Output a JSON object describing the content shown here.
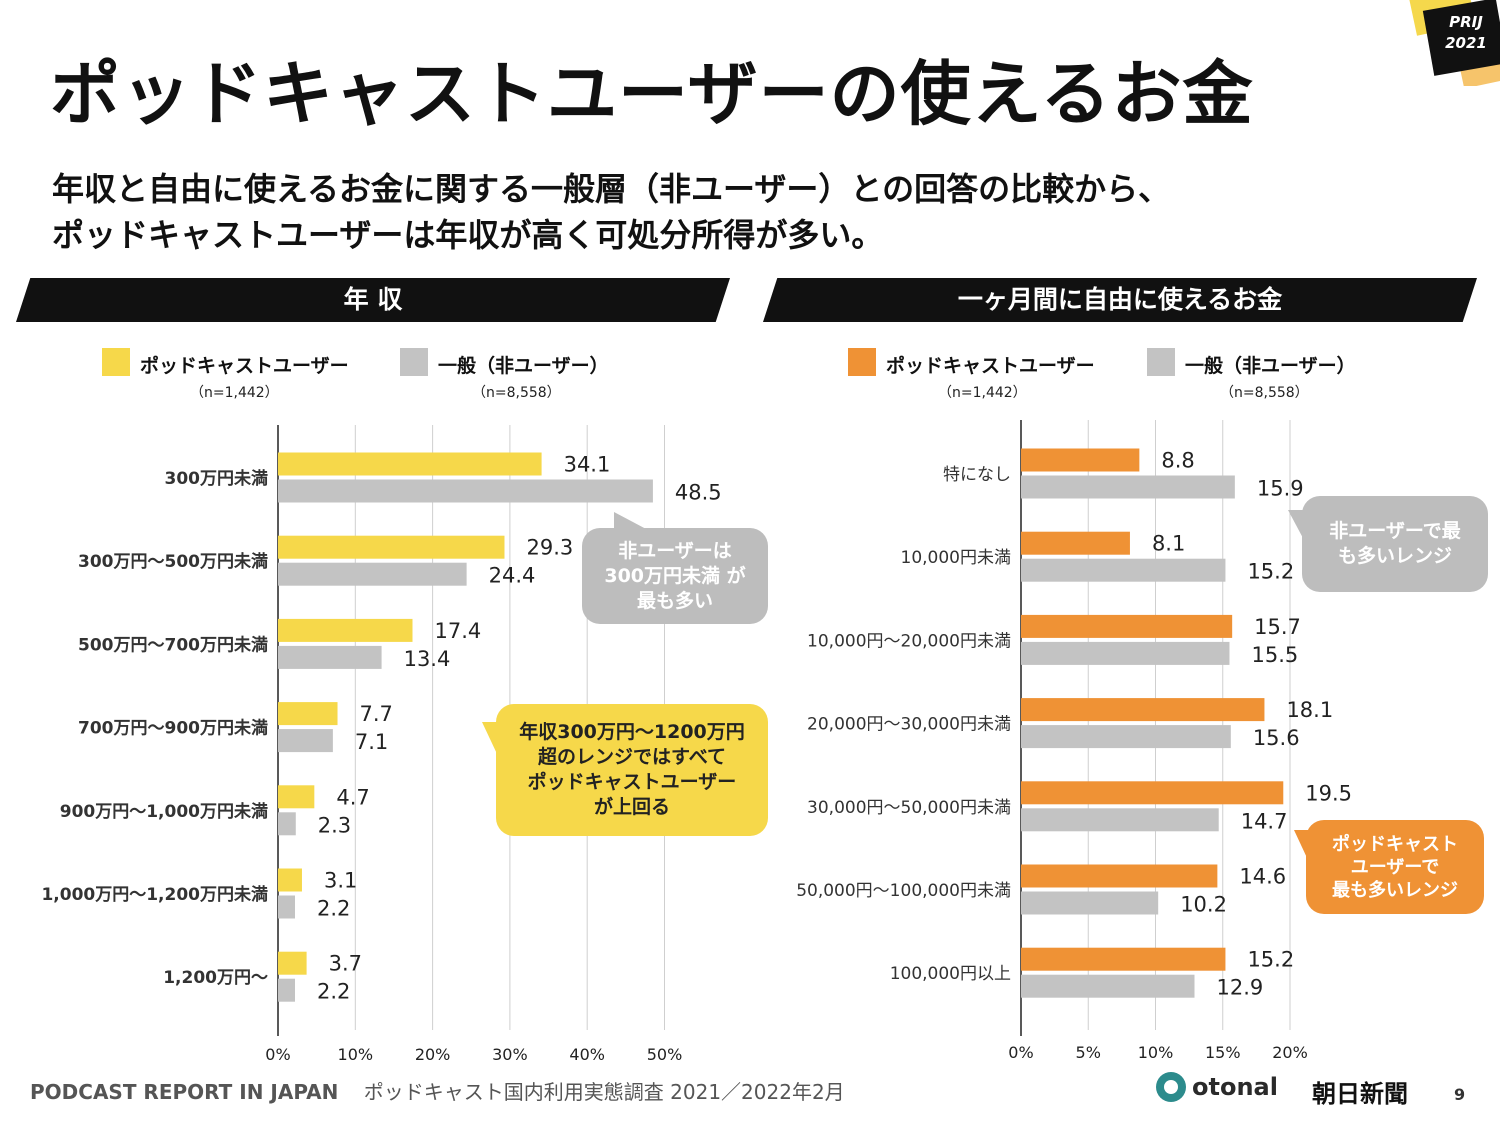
{
  "badge": {
    "line1": "PRIJ",
    "line2": "2021"
  },
  "title": "ポッドキャストユーザーの使えるお金",
  "subtitle": {
    "line1": "年収と自由に使えるお金に関する一般層（非ユーザー）との回答の比較から、",
    "line2": "ポッドキャストユーザーは年収が高く可処分所得が多い。"
  },
  "legend": {
    "user_label": "ポッドキャストユーザー",
    "user_n": "（n=1,442）",
    "general_label": "一般（非ユーザー）",
    "general_n": "（n=8,558）"
  },
  "colors": {
    "user_income": "#f6d84a",
    "user_money": "#ef9235",
    "general": "#c3c3c3",
    "bubble_gray": "#bdbdbd",
    "bubble_yellow": "#f6d84a",
    "bubble_orange": "#ef9235"
  },
  "chart_data": [
    {
      "type": "bar",
      "orientation": "horizontal",
      "title": "年 収",
      "categories": [
        "300万円未満",
        "300万円～500万円未満",
        "500万円～700万円未満",
        "700万円～900万円未満",
        "900万円～1,000万円未満",
        "1,000万円～1,200万円未満",
        "1,200万円～"
      ],
      "series": [
        {
          "name": "ポッドキャストユーザー",
          "values": [
            34.1,
            29.3,
            17.4,
            7.7,
            4.7,
            3.1,
            3.7
          ]
        },
        {
          "name": "一般（非ユーザー）",
          "values": [
            48.5,
            24.4,
            13.4,
            7.1,
            2.3,
            2.2,
            2.2
          ]
        }
      ],
      "xlim": [
        0,
        50
      ],
      "xticks": [
        "0%",
        "10%",
        "20%",
        "30%",
        "40%",
        "50%"
      ],
      "grid": true
    },
    {
      "type": "bar",
      "orientation": "horizontal",
      "title": "一ヶ月間に自由に使えるお金",
      "categories": [
        "特になし",
        "10,000円未満",
        "10,000円～20,000円未満",
        "20,000円～30,000円未満",
        "30,000円～50,000円未満",
        "50,000円～100,000円未満",
        "100,000円以上"
      ],
      "series": [
        {
          "name": "ポッドキャストユーザー",
          "values": [
            8.8,
            8.1,
            15.7,
            18.1,
            19.5,
            14.6,
            15.2
          ]
        },
        {
          "name": "一般（非ユーザー）",
          "values": [
            15.9,
            15.2,
            15.5,
            15.6,
            14.7,
            10.2,
            12.9
          ]
        }
      ],
      "xlim": [
        0,
        20
      ],
      "xticks": [
        "0%",
        "5%",
        "10%",
        "15%",
        "20%"
      ],
      "grid": true
    }
  ],
  "callouts": {
    "income_gray": "非ユーザーは\n300万円未満 が\n最も多い",
    "income_yellow": "年収300万円～1200万円\n超のレンジではすべて\nポッドキャストユーザー\nが上回る",
    "money_gray": "非ユーザーで最\nも多いレンジ",
    "money_orange": "ポッドキャスト\nユーザーで\n最も多いレンジ"
  },
  "footer": {
    "report": "PODCAST REPORT IN JAPAN",
    "survey": "ポッドキャスト国内利用実態調査 2021／2022年2月",
    "logo_otonal": "otonal",
    "logo_asahi": "朝日新聞",
    "page": "9"
  }
}
